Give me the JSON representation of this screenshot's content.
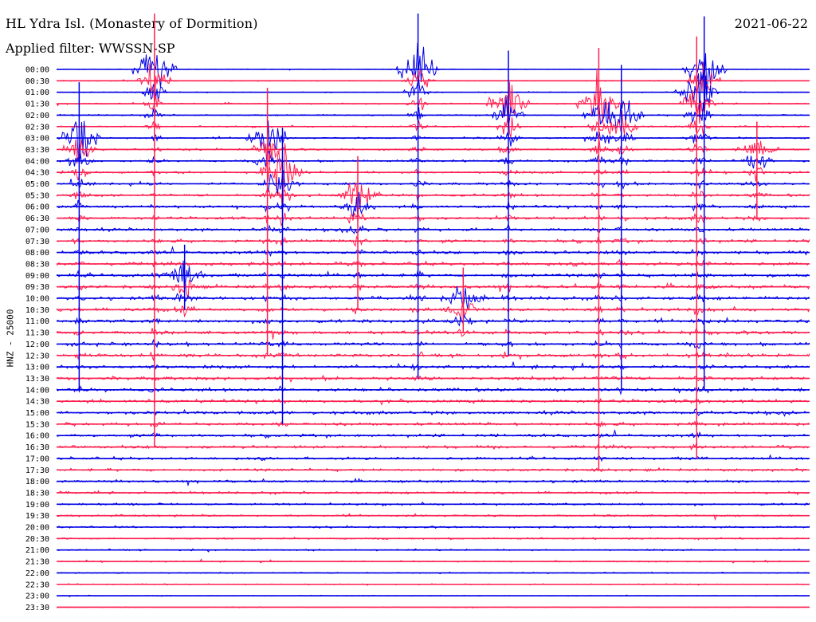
{
  "header": {
    "title": "HL Ydra Isl. (Monastery of Dormition)",
    "date": "2021-06-22",
    "filter": "Applied filter: WWSSN-SP"
  },
  "colors": {
    "trace_a": "#0000e6",
    "trace_b": "#ff1f4f",
    "background": "#ffffff"
  },
  "chart_data": {
    "type": "line",
    "title": "HL Ydra Isl. (Monastery of Dormition)",
    "subtitle": "Applied filter: WWSSN-SP",
    "ylabel": "HNZ - 25000",
    "y_tick_labels": [
      "00:00",
      "00:30",
      "01:00",
      "01:30",
      "02:00",
      "02:30",
      "03:00",
      "03:30",
      "04:00",
      "04:30",
      "05:00",
      "05:30",
      "06:00",
      "06:30",
      "07:00",
      "07:30",
      "08:00",
      "08:30",
      "09:00",
      "09:30",
      "10:00",
      "10:30",
      "11:00",
      "11:30",
      "12:00",
      "12:30",
      "13:00",
      "13:30",
      "14:00",
      "14:30",
      "15:00",
      "15:30",
      "16:00",
      "16:30",
      "17:00",
      "17:30",
      "18:00",
      "18:30",
      "19:00",
      "19:30",
      "20:00",
      "20:30",
      "21:00",
      "21:30",
      "22:00",
      "22:30",
      "23:00",
      "23:30"
    ],
    "series_colors": [
      "#0000e6",
      "#ff1f4f"
    ],
    "x_range_minutes": [
      0,
      30
    ],
    "events": [
      {
        "t": 0.03,
        "start": "03:00",
        "end": "14:00",
        "amp": 1.0
      },
      {
        "t": 0.13,
        "start": "00:00",
        "end": "16:30",
        "amp": 1.0
      },
      {
        "t": 0.17,
        "start": "09:00",
        "end": "10:30",
        "amp": 0.55
      },
      {
        "t": 0.28,
        "start": "03:00",
        "end": "12:30",
        "amp": 0.9
      },
      {
        "t": 0.3,
        "start": "04:30",
        "end": "15:30",
        "amp": 0.8
      },
      {
        "t": 0.4,
        "start": "05:30",
        "end": "10:30",
        "amp": 0.7
      },
      {
        "t": 0.48,
        "start": "00:00",
        "end": "13:30",
        "amp": 1.0
      },
      {
        "t": 0.54,
        "start": "10:00",
        "end": "11:30",
        "amp": 0.55
      },
      {
        "t": 0.6,
        "start": "01:30",
        "end": "12:30",
        "amp": 0.95
      },
      {
        "t": 0.72,
        "start": "01:30",
        "end": "17:30",
        "amp": 1.0
      },
      {
        "t": 0.75,
        "start": "02:00",
        "end": "14:00",
        "amp": 0.9
      },
      {
        "t": 0.85,
        "start": "01:00",
        "end": "17:00",
        "amp": 1.0
      },
      {
        "t": 0.86,
        "start": "00:00",
        "end": "14:00",
        "amp": 0.95
      },
      {
        "t": 0.93,
        "start": "03:30",
        "end": "06:30",
        "amp": 0.5
      }
    ]
  }
}
